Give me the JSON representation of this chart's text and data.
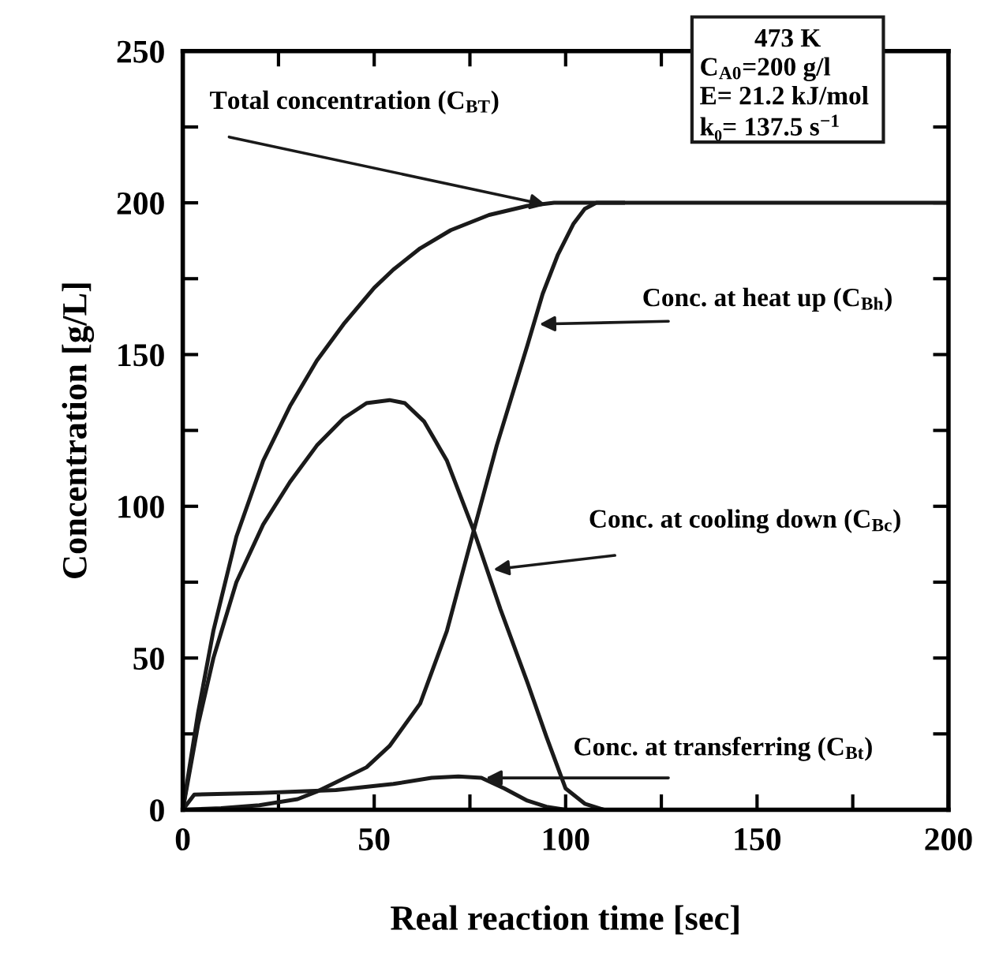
{
  "chart_data": {
    "type": "line",
    "xlabel": "Real reaction time [sec]",
    "ylabel": "Concentration [g/L]",
    "xlim": [
      0,
      200
    ],
    "ylim": [
      0,
      250
    ],
    "xticks": [
      0,
      {
        "value": 25,
        "label": null
      },
      50,
      {
        "value": 75,
        "label": null
      },
      100,
      {
        "value": 125,
        "label": null
      },
      150,
      {
        "value": 175,
        "label": null
      },
      200
    ],
    "yticks": [
      0,
      {
        "value": 25,
        "label": null
      },
      50,
      {
        "value": 75,
        "label": null
      },
      100,
      {
        "value": 125,
        "label": null
      },
      150,
      {
        "value": 175,
        "label": null
      },
      200,
      {
        "value": 225,
        "label": null
      },
      250
    ],
    "grid": false,
    "legend": false,
    "marker": "none",
    "line_style": "solid",
    "series": [
      {
        "color": "#1a1a1a",
        "x": [
          0,
          4,
          8,
          14,
          21,
          28,
          35,
          42,
          50,
          55,
          62,
          70,
          80,
          90,
          97,
          104,
          120,
          200
        ],
        "values": [
          0,
          32,
          59,
          90,
          115,
          133,
          148,
          160,
          172,
          178,
          185,
          191,
          196,
          199,
          200,
          200,
          200,
          200
        ]
      },
      {
        "color": "#1a1a1a",
        "x": [
          0,
          10,
          20,
          30,
          35,
          40,
          48,
          54,
          62,
          69,
          76,
          82,
          90,
          94,
          98,
          102,
          105,
          108,
          115
        ],
        "values": [
          0,
          0.5,
          1.5,
          3.5,
          6,
          9,
          14,
          21,
          35,
          59,
          92,
          120,
          153,
          170,
          183,
          193,
          198,
          200,
          200
        ]
      },
      {
        "color": "#1a1a1a",
        "x": [
          0,
          4,
          8,
          14,
          21,
          28,
          35,
          42,
          48,
          54,
          58,
          63,
          69,
          76,
          83,
          90,
          95,
          100,
          105,
          110,
          120
        ],
        "values": [
          0,
          28,
          50,
          75,
          94,
          108,
          120,
          129,
          134,
          135,
          134,
          128,
          115,
          92,
          66,
          42,
          24,
          7,
          2,
          0,
          0
        ]
      },
      {
        "color": "#1a1a1a",
        "x": [
          0,
          3,
          20,
          40,
          55,
          65,
          72,
          78,
          84,
          90,
          95,
          100,
          110
        ],
        "values": [
          0,
          5,
          5.5,
          6.5,
          8.5,
          10.5,
          11,
          10.5,
          7,
          3,
          1,
          0,
          0
        ]
      }
    ],
    "annotations": [
      {
        "text": "Total concentration (C$_{BT}$)",
        "x": 96,
        "y": 199
      },
      {
        "text": "Conc. at heat up (C$_{Bh}$)",
        "x": 92,
        "y": 160
      },
      {
        "text": "Conc. at cooling down (C$_{Bc}$)",
        "x": 80,
        "y": 79
      },
      {
        "text": "Conc. at transferring (C$_{Bt}$)",
        "x": 78,
        "y": 10.5
      },
      "473 K",
      "C$_{A0}$=200 g/l",
      "E= 21.2 kJ/mol",
      "k₀= 137.5 s$^{−1}$"
    ]
  }
}
